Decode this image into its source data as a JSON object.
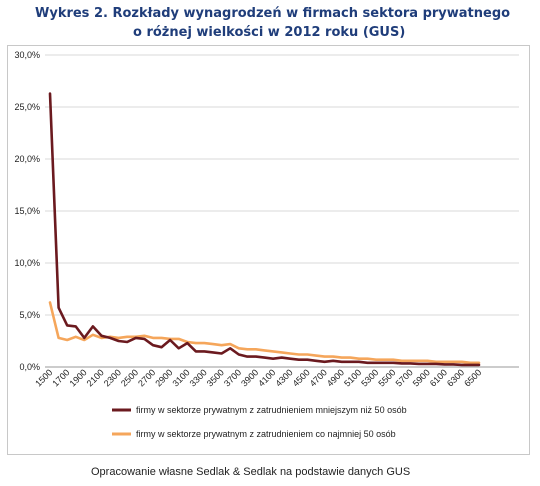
{
  "title_line1": "Wykres 2. Rozkłady wynagrodzeń w firmach sektora prywatnego",
  "title_line2": "o różnej wielkości w 2012 roku (GUS)",
  "source": "Opracowanie własne Sedlak & Sedlak na podstawie danych GUS",
  "chart_data": {
    "type": "line",
    "title": "Wykres 2. Rozkłady wynagrodzeń w firmach sektora prywatnego o różnej wielkości w 2012 roku (GUS)",
    "xlabel": "",
    "ylabel": "",
    "x": [
      1500,
      1600,
      1700,
      1800,
      1900,
      2000,
      2100,
      2200,
      2300,
      2400,
      2500,
      2600,
      2700,
      2800,
      2900,
      3000,
      3100,
      3200,
      3300,
      3400,
      3500,
      3600,
      3700,
      3800,
      3900,
      4000,
      4100,
      4200,
      4300,
      4400,
      4500,
      4600,
      4700,
      4800,
      4900,
      5000,
      5100,
      5200,
      5300,
      5400,
      5500,
      5600,
      5700,
      5800,
      5900,
      6000,
      6100,
      6200,
      6300,
      6400,
      6500
    ],
    "x_tick_labels": [
      "1500",
      "1700",
      "1900",
      "2100",
      "2300",
      "2500",
      "2700",
      "2900",
      "3100",
      "3300",
      "3500",
      "3700",
      "3900",
      "4100",
      "4300",
      "4500",
      "4700",
      "4900",
      "5100",
      "5300",
      "5500",
      "5700",
      "5900",
      "6100",
      "6300",
      "6500"
    ],
    "ylim": [
      0,
      30
    ],
    "y_ticks": [
      0,
      5,
      10,
      15,
      20,
      25,
      30
    ],
    "y_tick_labels": [
      "0,0%",
      "5,0%",
      "10,0%",
      "15,0%",
      "20,0%",
      "25,0%",
      "30,0%"
    ],
    "grid": "horizontal",
    "legend_position": "bottom",
    "series": [
      {
        "name": "firmy w sektorze prywatnym z zatrudnieniem mniejszym niż 50 osób",
        "color": "#6b1a1f",
        "values": [
          26.3,
          5.7,
          4.0,
          3.9,
          2.8,
          3.9,
          3.0,
          2.8,
          2.5,
          2.4,
          2.8,
          2.7,
          2.1,
          1.9,
          2.6,
          1.8,
          2.3,
          1.5,
          1.5,
          1.4,
          1.3,
          1.8,
          1.2,
          1.0,
          1.0,
          0.9,
          0.8,
          0.9,
          0.8,
          0.7,
          0.7,
          0.6,
          0.5,
          0.6,
          0.5,
          0.5,
          0.5,
          0.4,
          0.4,
          0.4,
          0.4,
          0.35,
          0.35,
          0.3,
          0.3,
          0.3,
          0.25,
          0.25,
          0.2,
          0.2,
          0.2
        ]
      },
      {
        "name": "firmy w sektorze prywatnym z zatrudnieniem co najmniej 50 osób",
        "color": "#f5a65b",
        "values": [
          6.2,
          2.8,
          2.6,
          2.9,
          2.6,
          3.1,
          2.8,
          2.9,
          2.8,
          2.9,
          2.9,
          3.0,
          2.8,
          2.8,
          2.7,
          2.7,
          2.4,
          2.3,
          2.3,
          2.2,
          2.1,
          2.2,
          1.8,
          1.7,
          1.7,
          1.6,
          1.5,
          1.4,
          1.3,
          1.2,
          1.2,
          1.1,
          1.0,
          1.0,
          0.9,
          0.9,
          0.8,
          0.8,
          0.7,
          0.7,
          0.7,
          0.6,
          0.6,
          0.6,
          0.6,
          0.5,
          0.5,
          0.5,
          0.5,
          0.4,
          0.4
        ]
      }
    ]
  }
}
